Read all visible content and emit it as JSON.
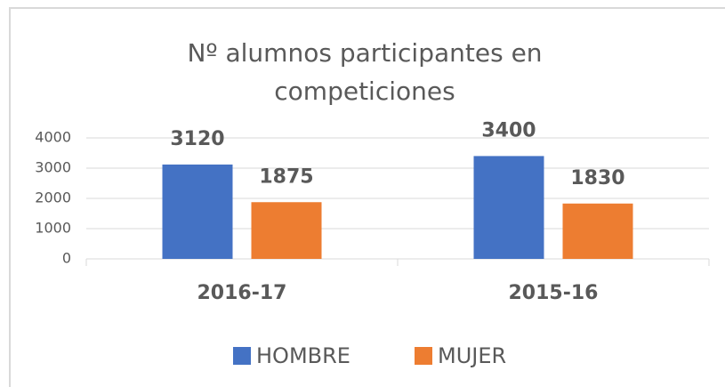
{
  "chart_data": {
    "type": "bar",
    "title": "Nº alumnos participantes en competiciones",
    "categories": [
      "2016-17",
      "2015-16"
    ],
    "series": [
      {
        "name": "HOMBRE",
        "color": "#4472c4",
        "values": [
          3120,
          3400
        ]
      },
      {
        "name": "MUJER",
        "color": "#ed7d31",
        "values": [
          1875,
          1830
        ]
      }
    ],
    "ylim": [
      0,
      4000
    ],
    "yticks": [
      0,
      1000,
      2000,
      3000,
      4000
    ],
    "grid": true,
    "legend": "bottom"
  }
}
